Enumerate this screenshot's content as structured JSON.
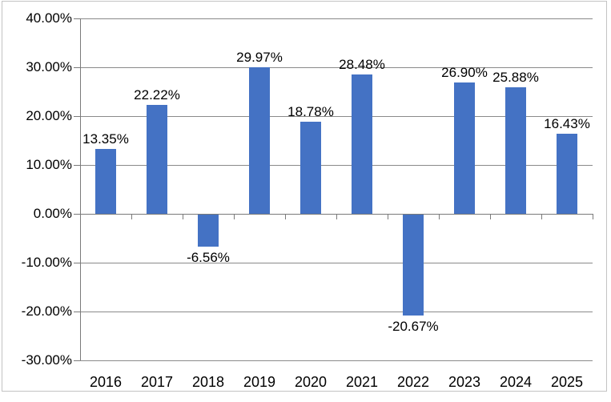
{
  "chart_data": {
    "type": "bar",
    "title": "",
    "xlabel": "",
    "ylabel": "",
    "categories": [
      "2016",
      "2017",
      "2018",
      "2019",
      "2020",
      "2021",
      "2022",
      "2023",
      "2024",
      "2025"
    ],
    "values": [
      13.35,
      22.22,
      -6.56,
      29.97,
      18.78,
      28.48,
      -20.67,
      26.9,
      25.88,
      16.43
    ],
    "data_labels": [
      "13.35%",
      "22.22%",
      "-6.56%",
      "29.97%",
      "18.78%",
      "28.48%",
      "-20.67%",
      "26.90%",
      "25.88%",
      "16.43%"
    ],
    "ylim": [
      -30,
      40
    ],
    "ytick_step": 10,
    "ytick_labels": [
      "40.00%",
      "30.00%",
      "20.00%",
      "10.00%",
      "0.00%",
      "-10.00%",
      "-20.00%",
      "-30.00%"
    ],
    "grid": true,
    "legend": "none",
    "colors": {
      "bar": "#4472c4",
      "gridline": "#8a8a8a",
      "axis": "#7a7a7a",
      "text": "#000000",
      "frame_border": "#c3c3c3",
      "background": "#ffffff"
    }
  }
}
